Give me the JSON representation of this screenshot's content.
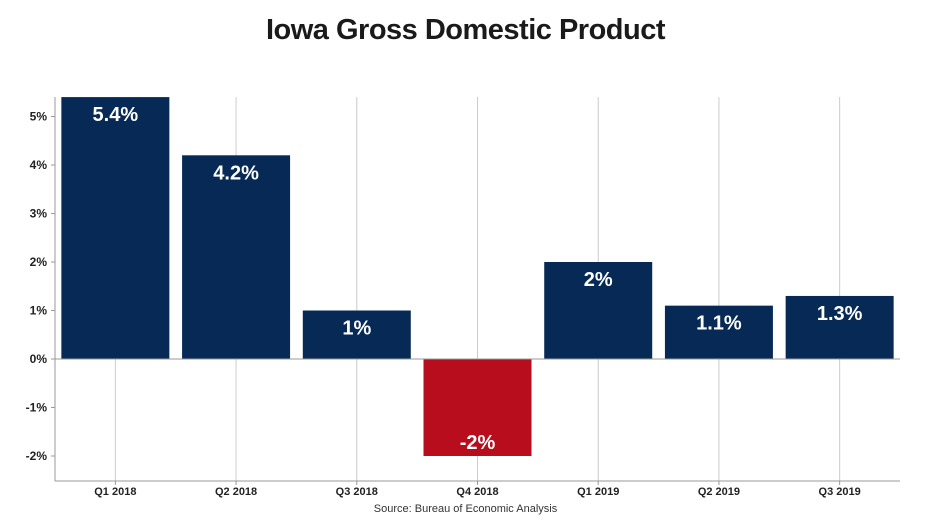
{
  "chart_data": {
    "type": "bar",
    "title": "Iowa Gross Domestic Product",
    "categories": [
      "Q1 2018",
      "Q2 2018",
      "Q3 2018",
      "Q4 2018",
      "Q1 2019",
      "Q2 2019",
      "Q3 2019"
    ],
    "values": [
      5.4,
      4.2,
      1.0,
      -2.0,
      2.0,
      1.1,
      1.3
    ],
    "data_labels": [
      "5.4%",
      "4.2%",
      "1%",
      "-2%",
      "2%",
      "1.1%",
      "1.3%"
    ],
    "y_ticks": [
      5,
      4,
      3,
      2,
      1,
      0,
      -1,
      -2
    ],
    "y_tick_labels": [
      "5%",
      "4%",
      "3%",
      "2%",
      "1%",
      "0%",
      "-1%",
      "-2%"
    ],
    "ylim": [
      -2.5,
      5.4
    ],
    "xlabel": "",
    "ylabel": "",
    "grid": "vertical",
    "legend": "none",
    "source": "Source: Bureau of Economic Analysis",
    "colors": {
      "positive": "#062a55",
      "negative": "#b70d1d",
      "grid": "#cccccc",
      "axis": "#999999",
      "label": "#ffffff"
    }
  }
}
